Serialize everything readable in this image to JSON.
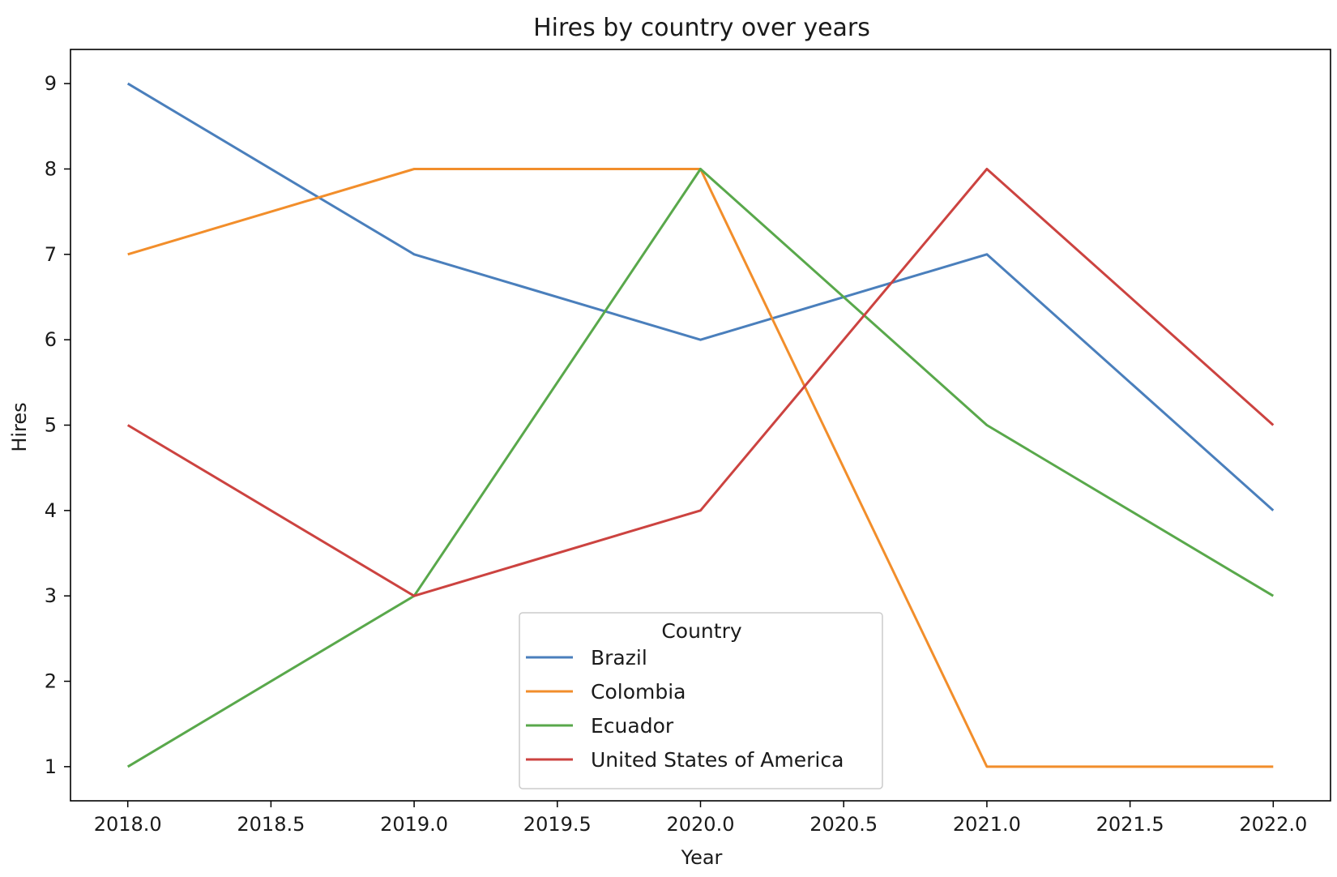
{
  "chart_data": {
    "type": "line",
    "title": "Hires by country over years",
    "xlabel": "Year",
    "ylabel": "Hires",
    "x": [
      2018,
      2019,
      2020,
      2021,
      2022
    ],
    "xlim": [
      2017.8,
      2022.2
    ],
    "ylim": [
      0.6,
      9.4
    ],
    "xticks": [
      "2018.0",
      "2018.5",
      "2019.0",
      "2019.5",
      "2020.0",
      "2020.5",
      "2021.0",
      "2021.5",
      "2022.0"
    ],
    "xtick_values": [
      2018.0,
      2018.5,
      2019.0,
      2019.5,
      2020.0,
      2020.5,
      2021.0,
      2021.5,
      2022.0
    ],
    "yticks": [
      "1",
      "2",
      "3",
      "4",
      "5",
      "6",
      "7",
      "8",
      "9"
    ],
    "ytick_values": [
      1,
      2,
      3,
      4,
      5,
      6,
      7,
      8,
      9
    ],
    "grid": false,
    "legend": {
      "title": "Country",
      "position": "lower-center"
    },
    "series": [
      {
        "name": "Brazil",
        "color": "#4a7fbc",
        "values": [
          9,
          7,
          6,
          7,
          4
        ]
      },
      {
        "name": "Colombia",
        "color": "#f28e2b",
        "values": [
          7,
          8,
          8,
          1,
          1
        ]
      },
      {
        "name": "Ecuador",
        "color": "#59a84b",
        "values": [
          1,
          3,
          8,
          5,
          3
        ]
      },
      {
        "name": "United States of America",
        "color": "#cc4340",
        "values": [
          5,
          3,
          4,
          8,
          5
        ]
      }
    ]
  }
}
